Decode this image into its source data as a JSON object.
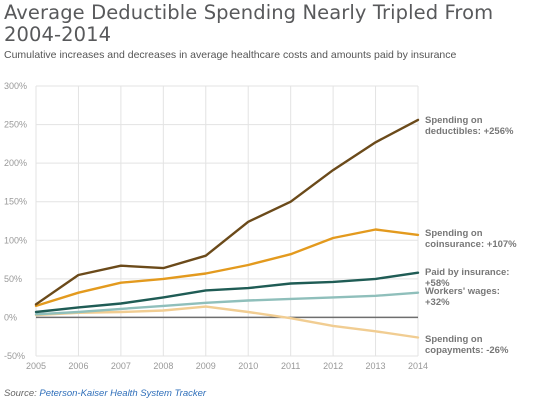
{
  "title": "Average Deductible Spending Nearly Tripled From 2004-2014",
  "subtitle": "Cumulative increases and decreases in average healthcare costs and amounts paid by insurance",
  "source": {
    "prefix": "Source: ",
    "link": "Peterson-Kaiser Health System Tracker"
  },
  "chart_data": {
    "type": "line",
    "x": [
      2005,
      2006,
      2007,
      2008,
      2009,
      2010,
      2011,
      2012,
      2013,
      2014
    ],
    "xlim": [
      2005,
      2014
    ],
    "ylim": [
      -50,
      300
    ],
    "yticks": [
      -50,
      0,
      50,
      100,
      150,
      200,
      250,
      300
    ],
    "ytick_labels": [
      "-50%",
      "0%",
      "50%",
      "100%",
      "150%",
      "200%",
      "250%",
      "300%"
    ],
    "xtick_labels": [
      "2005",
      "2006",
      "2007",
      "2008",
      "2009",
      "2010",
      "2011",
      "2012",
      "2013",
      "2014"
    ],
    "grid": true,
    "legend": "none",
    "series": [
      {
        "id": "deductibles",
        "label_lines": [
          "Spending on",
          "deductibles: +256%"
        ],
        "color": "#6b4a1a",
        "values": [
          17,
          55,
          67,
          64,
          80,
          124,
          150,
          191,
          227,
          256
        ]
      },
      {
        "id": "coinsurance",
        "label_lines": [
          "Spending on",
          "coinsurance: +107%"
        ],
        "color": "#e39a1e",
        "values": [
          15,
          32,
          45,
          50,
          57,
          68,
          82,
          103,
          114,
          107
        ]
      },
      {
        "id": "paid-by-insurance",
        "label_lines": [
          "Paid by insurance:",
          "+58%"
        ],
        "color": "#1f5c55",
        "values": [
          7,
          13,
          18,
          26,
          35,
          38,
          44,
          46,
          50,
          58
        ]
      },
      {
        "id": "workers-wages",
        "label_lines": [
          "Workers' wages:",
          "+32%"
        ],
        "color": "#8fbfbb",
        "values": [
          4,
          7,
          11,
          15,
          19,
          22,
          24,
          26,
          28,
          32
        ]
      },
      {
        "id": "copayments",
        "label_lines": [
          "Spending on",
          "copayments: -26%"
        ],
        "color": "#f1cd92",
        "values": [
          3,
          6,
          7,
          9,
          14,
          7,
          -1,
          -11,
          -18,
          -26
        ]
      }
    ]
  }
}
